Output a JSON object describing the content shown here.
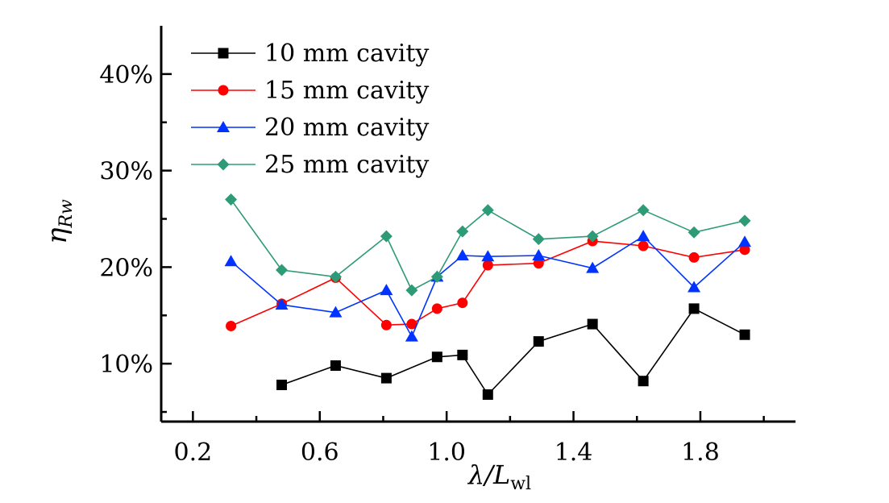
{
  "chart_data": {
    "type": "line",
    "xlabel_main": "λ/L",
    "xlabel_sub": "wl",
    "ylabel_main": "η",
    "ylabel_sub": "Rw",
    "xlim": [
      0.1,
      2.1
    ],
    "ylim": [
      0.04,
      0.45
    ],
    "xticks": [
      {
        "value": 0.2,
        "label": "0.2"
      },
      {
        "value": 0.6,
        "label": "0.6"
      },
      {
        "value": 1.0,
        "label": "1.0"
      },
      {
        "value": 1.4,
        "label": "1.4"
      },
      {
        "value": 1.8,
        "label": "1.8"
      }
    ],
    "xminor": [
      0.4,
      0.8,
      1.2,
      1.6,
      2.0
    ],
    "yticks": [
      {
        "value": 0.1,
        "label": "10%"
      },
      {
        "value": 0.2,
        "label": "20%"
      },
      {
        "value": 0.3,
        "label": "30%"
      },
      {
        "value": 0.4,
        "label": "40%"
      }
    ],
    "yminor": [
      0.05,
      0.15,
      0.25,
      0.35
    ],
    "legend_position": "top-left",
    "series": [
      {
        "name": "10 mm cavity",
        "color": "#000000",
        "marker": "square",
        "x": [
          0.48,
          0.65,
          0.81,
          0.97,
          1.05,
          1.13,
          1.29,
          1.46,
          1.62,
          1.78,
          1.94
        ],
        "y": [
          0.078,
          0.098,
          0.085,
          0.107,
          0.109,
          0.068,
          0.123,
          0.141,
          0.082,
          0.157,
          0.13
        ]
      },
      {
        "name": "15 mm cavity",
        "color": "#ff0000",
        "marker": "circle",
        "x": [
          0.32,
          0.48,
          0.65,
          0.81,
          0.89,
          0.97,
          1.05,
          1.13,
          1.29,
          1.46,
          1.62,
          1.78,
          1.94
        ],
        "y": [
          0.139,
          0.162,
          0.189,
          0.14,
          0.141,
          0.157,
          0.163,
          0.202,
          0.204,
          0.227,
          0.222,
          0.21,
          0.218
        ]
      },
      {
        "name": "20 mm cavity",
        "color": "#0033ff",
        "marker": "triangle",
        "x": [
          0.32,
          0.48,
          0.65,
          0.81,
          0.89,
          0.97,
          1.05,
          1.13,
          1.29,
          1.46,
          1.62,
          1.78,
          1.94
        ],
        "y": [
          0.206,
          0.161,
          0.153,
          0.176,
          0.128,
          0.19,
          0.212,
          0.211,
          0.212,
          0.199,
          0.232,
          0.179,
          0.226
        ]
      },
      {
        "name": "25 mm cavity",
        "color": "#2e9b78",
        "marker": "diamond",
        "x": [
          0.32,
          0.48,
          0.65,
          0.81,
          0.89,
          0.97,
          1.05,
          1.13,
          1.29,
          1.46,
          1.62,
          1.78,
          1.94
        ],
        "y": [
          0.27,
          0.197,
          0.19,
          0.232,
          0.176,
          0.19,
          0.237,
          0.259,
          0.229,
          0.232,
          0.259,
          0.236,
          0.248
        ]
      }
    ]
  }
}
